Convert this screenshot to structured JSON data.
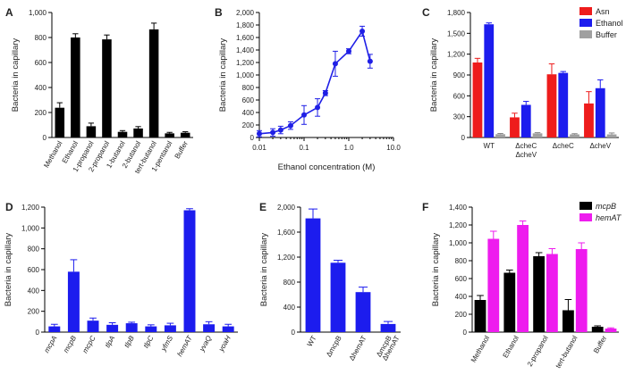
{
  "chart_data": [
    {
      "panel": "A",
      "type": "bar",
      "ylabel": "Bacteria in capillary",
      "ylim": [
        0,
        1000
      ],
      "yticks": [
        0,
        200,
        400,
        600,
        800,
        1000
      ],
      "ytick_labels": [
        "0",
        "200",
        "400",
        "600",
        "800",
        "1,000"
      ],
      "categories": [
        "Methanol",
        "Ethanol",
        "1-propanol",
        "2-propanol",
        "1-butanol",
        "2-butanol",
        "tert-butanol",
        "1-pentanol",
        "Buffer"
      ],
      "series": [
        {
          "name": "",
          "color": "#000000",
          "values": [
            238,
            800,
            90,
            785,
            45,
            72,
            865,
            33,
            38
          ],
          "errors": [
            40,
            30,
            25,
            35,
            10,
            15,
            50,
            8,
            8
          ]
        }
      ]
    },
    {
      "panel": "B",
      "type": "line",
      "xscale": "log",
      "xlabel": "Ethanol concentration (M)",
      "ylabel": "Bacteria in capillary",
      "xlim": [
        0.01,
        10
      ],
      "xticks": [
        0.01,
        0.1,
        1,
        10
      ],
      "xtick_labels": [
        "0.01",
        "0.1",
        "1.0",
        "10.0"
      ],
      "ylim": [
        0,
        2000
      ],
      "yticks": [
        0,
        200,
        400,
        600,
        800,
        1000,
        1200,
        1400,
        1600,
        1800,
        2000
      ],
      "ytick_labels": [
        "0",
        "200",
        "400",
        "600",
        "800",
        "1,000",
        "1,200",
        "1,400",
        "1,600",
        "1,800",
        "2,000"
      ],
      "color": "#1f1fe6",
      "x": [
        0.01,
        0.02,
        0.03,
        0.05,
        0.1,
        0.2,
        0.3,
        0.5,
        1.0,
        2.0,
        3.0
      ],
      "y": [
        60,
        80,
        120,
        190,
        360,
        480,
        710,
        1180,
        1380,
        1700,
        1220
      ],
      "errors": [
        50,
        60,
        60,
        60,
        150,
        140,
        40,
        200,
        40,
        80,
        110
      ]
    },
    {
      "panel": "C",
      "type": "bar",
      "ylabel": "Bacteria in capillary",
      "ylim": [
        0,
        1800
      ],
      "yticks": [
        0,
        300,
        600,
        900,
        1200,
        1500,
        1800
      ],
      "ytick_labels": [
        "0",
        "300",
        "600",
        "900",
        "1,200",
        "1,500",
        "1,800"
      ],
      "categories": [
        "WT",
        "ΔcheC ΔcheV",
        "ΔcheC",
        "ΔcheV"
      ],
      "category_lines": [
        [
          "WT"
        ],
        [
          "ΔcheC",
          "ΔcheV"
        ],
        [
          "ΔcheC"
        ],
        [
          "ΔcheV"
        ]
      ],
      "legend_position": "top-right",
      "series": [
        {
          "name": "Asn",
          "color": "#ee1c1c",
          "values": [
            1080,
            290,
            910,
            490
          ],
          "errors": [
            60,
            60,
            150,
            170
          ]
        },
        {
          "name": "Ethanol",
          "color": "#1c1cee",
          "values": [
            1630,
            470,
            930,
            710
          ],
          "errors": [
            20,
            50,
            20,
            120
          ]
        },
        {
          "name": "Buffer",
          "color": "#a0a0a0",
          "values": [
            48,
            60,
            45,
            45
          ],
          "errors": [
            10,
            10,
            10,
            20
          ]
        }
      ]
    },
    {
      "panel": "D",
      "type": "bar",
      "ylabel": "Bacteria in capillary",
      "ylim": [
        0,
        1200
      ],
      "yticks": [
        0,
        200,
        400,
        600,
        800,
        1000,
        1200
      ],
      "ytick_labels": [
        "0",
        "200",
        "400",
        "600",
        "800",
        "1,000",
        "1,200"
      ],
      "categories": [
        "mcpA",
        "mcpB",
        "mcpC",
        "tlpA",
        "tlpB",
        "tlpC",
        "yfmS",
        "hemAT",
        "yvaQ",
        "yoaH"
      ],
      "categories_italic": true,
      "series": [
        {
          "name": "",
          "color": "#1c1cee",
          "values": [
            55,
            580,
            110,
            70,
            85,
            55,
            65,
            1170,
            75,
            55
          ],
          "errors": [
            20,
            115,
            25,
            20,
            10,
            15,
            20,
            15,
            25,
            20
          ]
        }
      ]
    },
    {
      "panel": "E",
      "type": "bar",
      "ylabel": "Bacteria in capillary",
      "ylim": [
        0,
        2000
      ],
      "yticks": [
        0,
        400,
        800,
        1200,
        1600,
        2000
      ],
      "ytick_labels": [
        "0",
        "400",
        "800",
        "1,200",
        "1,600",
        "2,000"
      ],
      "categories": [
        "WT",
        "ΔmcpB",
        "ΔhemAT",
        "ΔmcpB ΔhemAT"
      ],
      "category_lines": [
        [
          "WT"
        ],
        [
          "ΔmcpB"
        ],
        [
          "ΔhemAT"
        ],
        [
          "ΔmcpB",
          "ΔhemAT"
        ]
      ],
      "series": [
        {
          "name": "",
          "color": "#1c1cee",
          "values": [
            1820,
            1110,
            640,
            130
          ],
          "errors": [
            150,
            40,
            80,
            40
          ]
        }
      ]
    },
    {
      "panel": "F",
      "type": "bar",
      "ylabel": "Bacteria in capillary",
      "ylim": [
        0,
        1400
      ],
      "yticks": [
        0,
        200,
        400,
        600,
        800,
        1000,
        1200,
        1400
      ],
      "ytick_labels": [
        "0",
        "200",
        "400",
        "600",
        "800",
        "1,000",
        "1,200",
        "1,400"
      ],
      "categories": [
        "Methanol",
        "Ethanol",
        "2-propanol",
        "tert-butanol",
        "Buffer"
      ],
      "legend_position": "top-right",
      "legend_italic": true,
      "series": [
        {
          "name": "mcpB",
          "color": "#000000",
          "values": [
            360,
            665,
            850,
            245,
            60
          ],
          "errors": [
            50,
            30,
            40,
            120,
            10
          ]
        },
        {
          "name": "hemAT",
          "color": "#ee1cee",
          "values": [
            1045,
            1200,
            875,
            930,
            40
          ],
          "errors": [
            85,
            45,
            60,
            70,
            8
          ]
        }
      ]
    }
  ]
}
